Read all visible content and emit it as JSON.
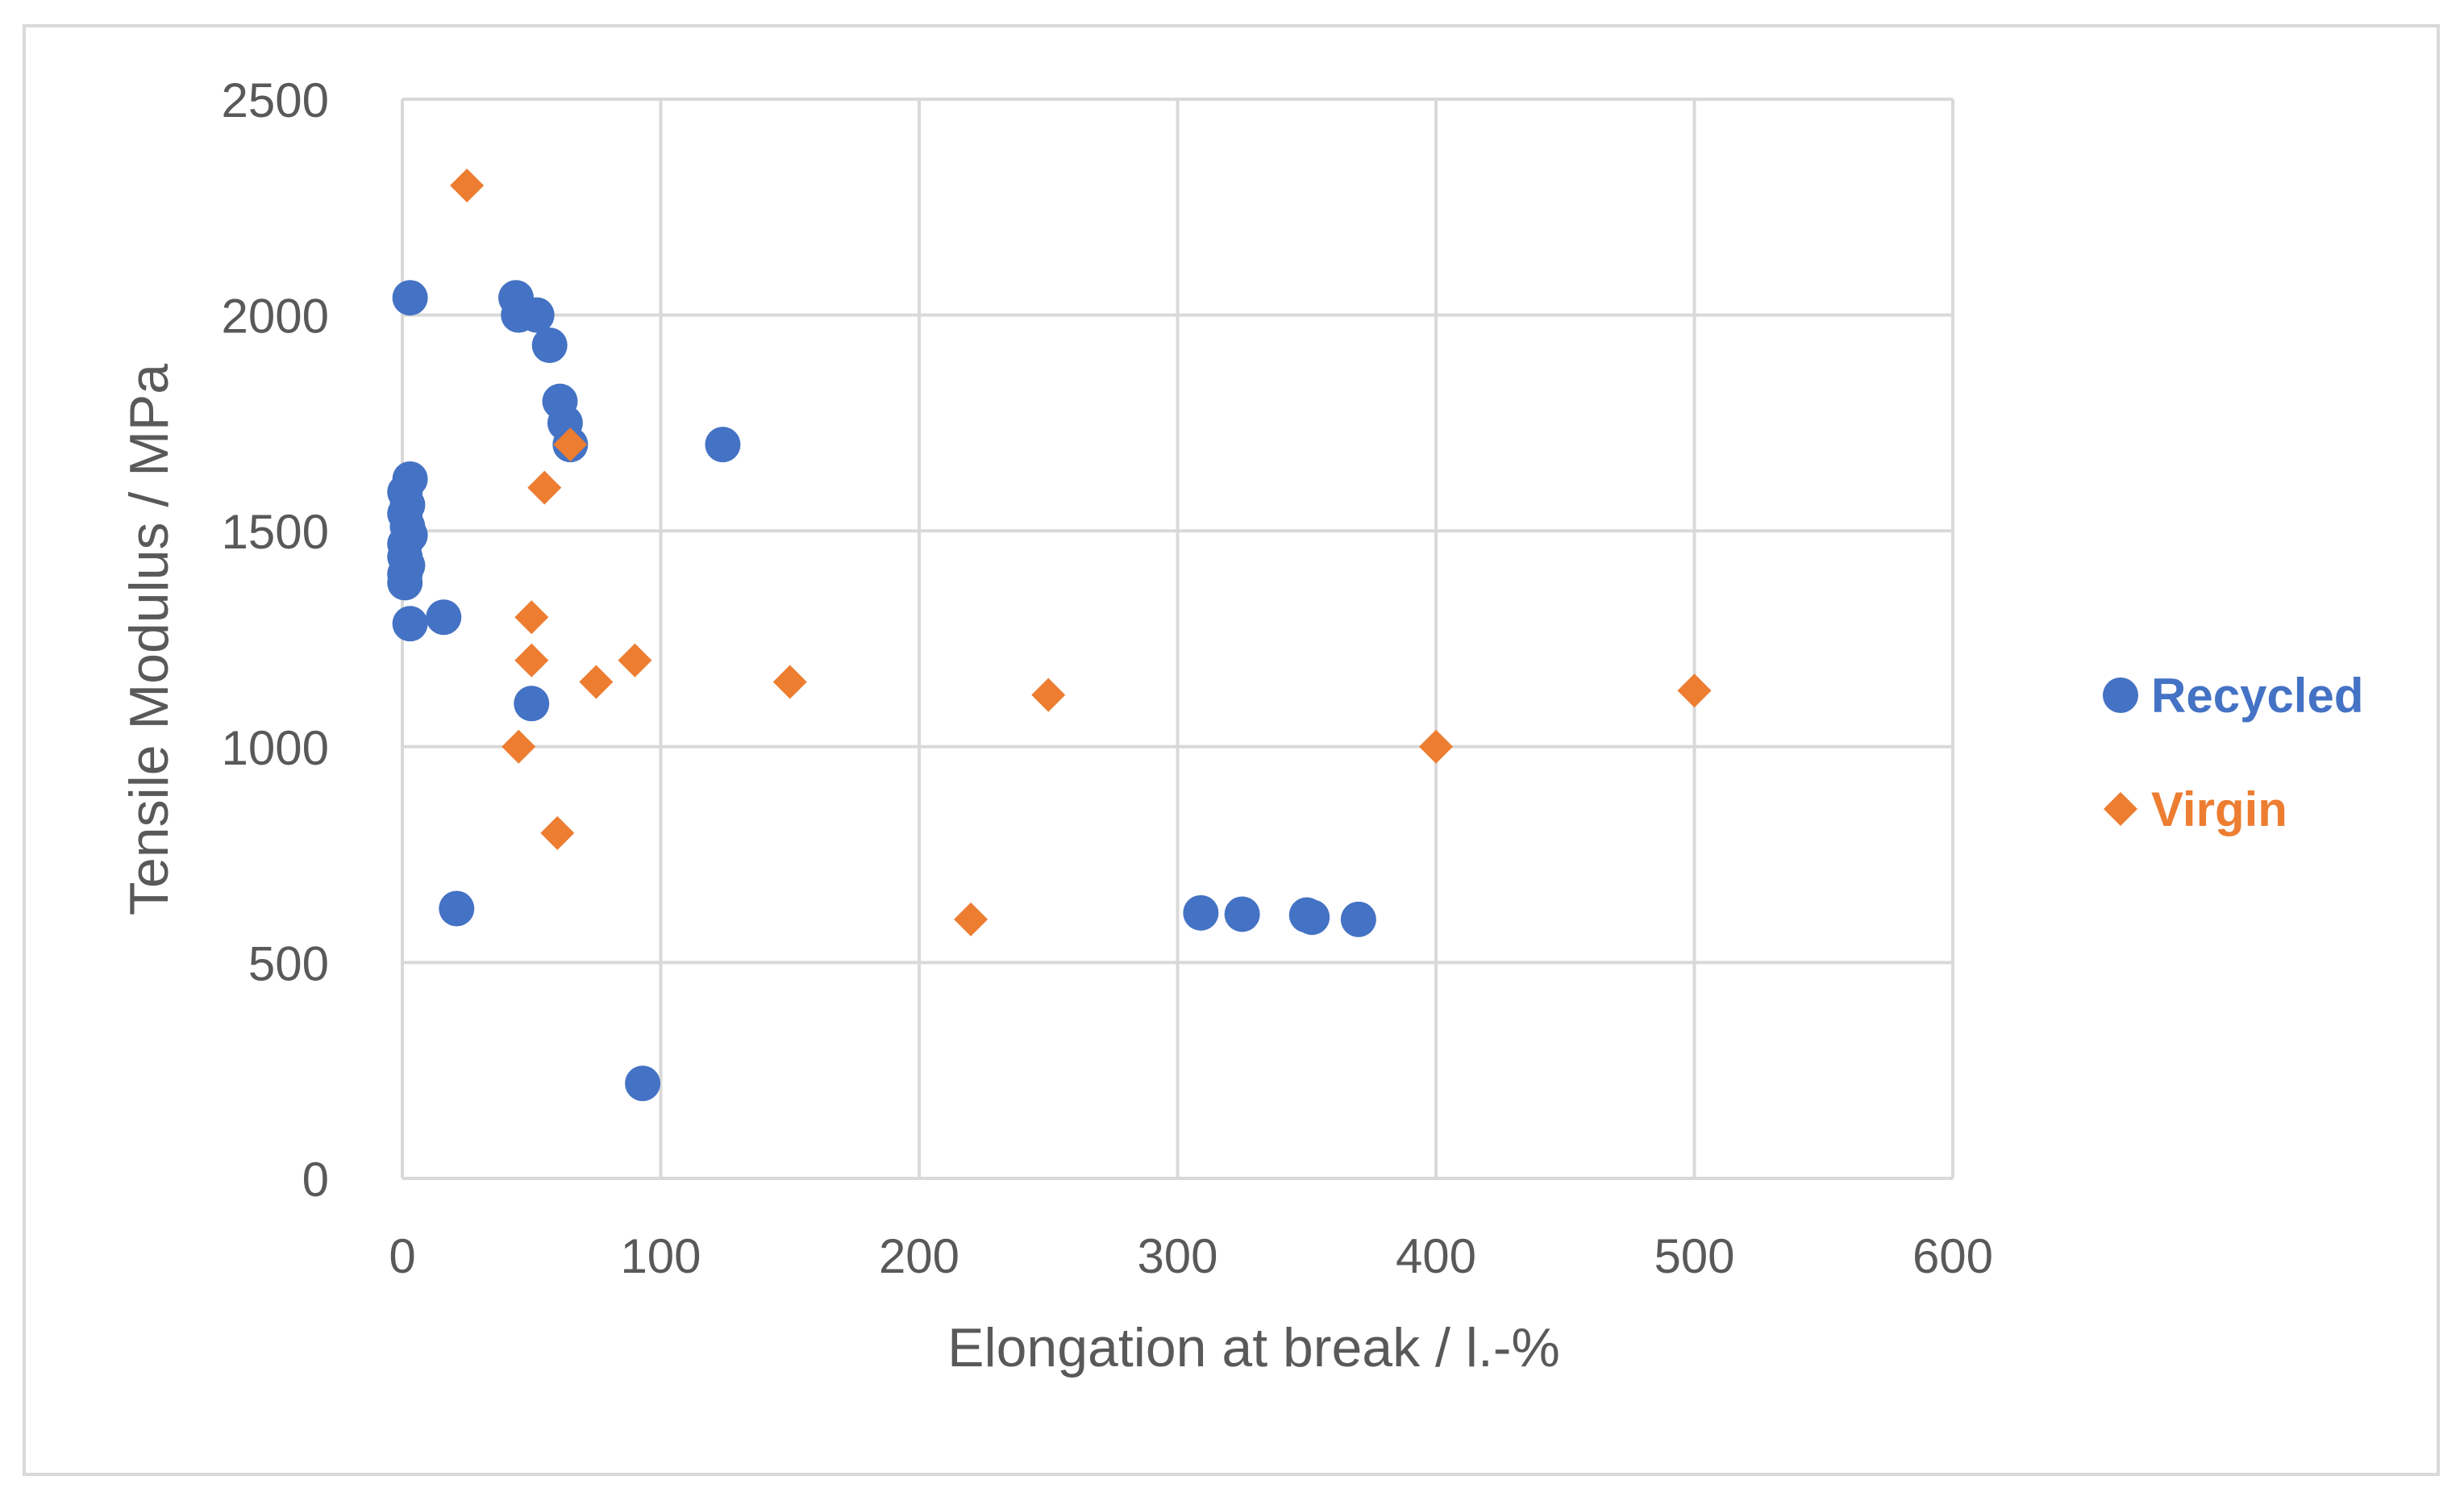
{
  "chart_data": {
    "type": "scatter",
    "title": "",
    "xlabel": "Elongation at break / l.-%",
    "ylabel": "Tensile Modulus / MPa",
    "xlim": [
      0,
      600
    ],
    "ylim": [
      0,
      2500
    ],
    "xticks": [
      0,
      100,
      200,
      300,
      400,
      500,
      600
    ],
    "yticks": [
      0,
      500,
      1000,
      1500,
      2000,
      2500
    ],
    "xtick_labels": [
      "0",
      "100",
      "200",
      "300",
      "400",
      "500",
      "600"
    ],
    "ytick_labels": [
      "0",
      "500",
      "1000",
      "1500",
      "2000",
      "2500"
    ],
    "grid": true,
    "legend_position": "right",
    "series": [
      {
        "name": "Recycled",
        "marker": "circle",
        "color": "#4472c4",
        "points": [
          {
            "x": 3,
            "y": 2040
          },
          {
            "x": 44,
            "y": 2040
          },
          {
            "x": 45,
            "y": 2000
          },
          {
            "x": 52,
            "y": 2000
          },
          {
            "x": 57,
            "y": 1930
          },
          {
            "x": 61,
            "y": 1800
          },
          {
            "x": 63,
            "y": 1750
          },
          {
            "x": 65,
            "y": 1700
          },
          {
            "x": 124,
            "y": 1700
          },
          {
            "x": 3,
            "y": 1620
          },
          {
            "x": 1,
            "y": 1590
          },
          {
            "x": 2,
            "y": 1560
          },
          {
            "x": 1,
            "y": 1540
          },
          {
            "x": 2,
            "y": 1510
          },
          {
            "x": 3,
            "y": 1490
          },
          {
            "x": 1,
            "y": 1470
          },
          {
            "x": 1,
            "y": 1440
          },
          {
            "x": 2,
            "y": 1420
          },
          {
            "x": 1,
            "y": 1400
          },
          {
            "x": 1,
            "y": 1380
          },
          {
            "x": 3,
            "y": 1285
          },
          {
            "x": 16,
            "y": 1300
          },
          {
            "x": 50,
            "y": 1100
          },
          {
            "x": 21,
            "y": 625
          },
          {
            "x": 93,
            "y": 220
          },
          {
            "x": 309,
            "y": 615
          },
          {
            "x": 325,
            "y": 612
          },
          {
            "x": 350,
            "y": 610
          },
          {
            "x": 352,
            "y": 605
          },
          {
            "x": 370,
            "y": 600
          }
        ]
      },
      {
        "name": "Virgin",
        "marker": "diamond",
        "color": "#ed7d31",
        "points": [
          {
            "x": 25,
            "y": 2300
          },
          {
            "x": 65,
            "y": 1700
          },
          {
            "x": 55,
            "y": 1600
          },
          {
            "x": 50,
            "y": 1300
          },
          {
            "x": 50,
            "y": 1200
          },
          {
            "x": 90,
            "y": 1200
          },
          {
            "x": 75,
            "y": 1150
          },
          {
            "x": 150,
            "y": 1150
          },
          {
            "x": 45,
            "y": 1000
          },
          {
            "x": 60,
            "y": 800
          },
          {
            "x": 220,
            "y": 600
          },
          {
            "x": 250,
            "y": 1120
          },
          {
            "x": 400,
            "y": 1000
          },
          {
            "x": 500,
            "y": 1130
          }
        ]
      }
    ]
  }
}
